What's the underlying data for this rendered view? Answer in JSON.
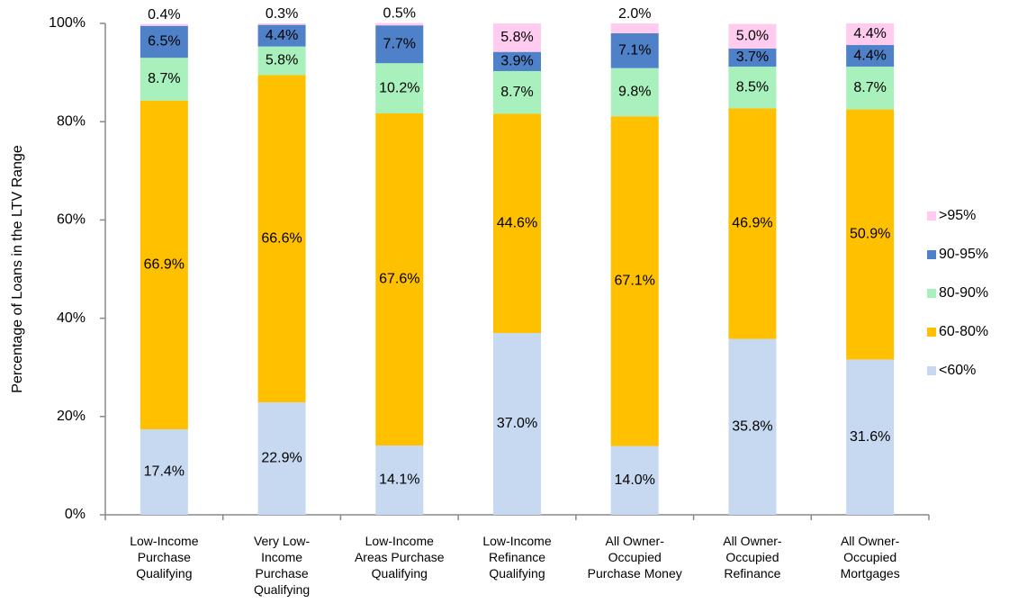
{
  "chart_data": {
    "type": "stacked_bar",
    "y_label": "Percentage of Loans in the LTV Range",
    "categories": [
      "Low-Income\nPurchase\nQualifying",
      "Very Low-\nIncome\nPurchase\nQualifying",
      "Low-Income\nAreas Purchase\nQualifying",
      "Low-Income\nRefinance\nQualifying",
      "All Owner-\nOccupied\nPurchase Money",
      "All Owner-\nOccupied\nRefinance",
      "All Owner-\nOccupied\nMortgages"
    ],
    "series": [
      {
        "name": "<60%",
        "color": "#c6d9f1",
        "values": [
          17.4,
          22.9,
          14.1,
          37.0,
          14.0,
          35.8,
          31.6
        ],
        "value_labels": [
          "17.4%",
          "22.9%",
          "14.1%",
          "37.0%",
          "14.0%",
          "35.8%",
          "31.6%"
        ]
      },
      {
        "name": "60-80%",
        "color": "#ffc000",
        "values": [
          66.9,
          66.6,
          67.6,
          44.6,
          67.1,
          46.9,
          50.9
        ],
        "value_labels": [
          "66.9%",
          "66.6%",
          "67.6%",
          "44.6%",
          "67.1%",
          "46.9%",
          "50.9%"
        ]
      },
      {
        "name": "80-90%",
        "color": "#a8f0bc",
        "values": [
          8.7,
          5.8,
          10.2,
          8.7,
          9.8,
          8.5,
          8.7
        ],
        "value_labels": [
          "8.7%",
          "5.8%",
          "10.2%",
          "8.7%",
          "9.8%",
          "8.5%",
          "8.7%"
        ]
      },
      {
        "name": "90-95%",
        "color": "#4f81c8",
        "values": [
          6.5,
          4.4,
          7.7,
          3.9,
          7.1,
          3.7,
          4.4
        ],
        "value_labels": [
          "6.5%",
          "4.4%",
          "7.7%",
          "3.9%",
          "7.1%",
          "3.7%",
          "4.4%"
        ]
      },
      {
        "name": ">95%",
        "color": "#ffccf0",
        "values": [
          0.4,
          0.3,
          0.5,
          5.8,
          2.0,
          5.0,
          4.4
        ],
        "value_labels": [
          "0.4%",
          "0.3%",
          "0.5%",
          "5.8%",
          "2.0%",
          "5.0%",
          "4.4%"
        ]
      }
    ],
    "ylim": [
      0,
      100
    ],
    "yticks": [
      {
        "value": 0,
        "label": "0%"
      },
      {
        "value": 20,
        "label": "20%"
      },
      {
        "value": 40,
        "label": "40%"
      },
      {
        "value": 60,
        "label": "60%"
      },
      {
        "value": 80,
        "label": "80%"
      },
      {
        "value": 100,
        "label": "100%"
      }
    ],
    "legend": "right"
  }
}
